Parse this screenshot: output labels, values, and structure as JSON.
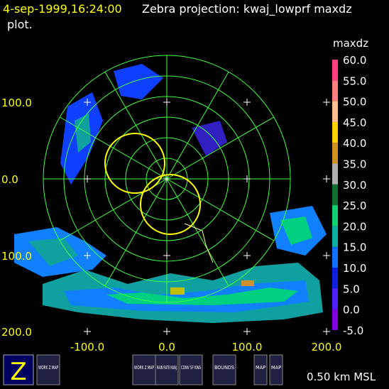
{
  "header": {
    "time": "4-sep-1999,16:24:00",
    "title": "Zebra projection: kwaj_lowprf maxdz",
    "title_cont": "plot."
  },
  "y_axis_labels": [
    "100.0",
    "0.0",
    "100.0",
    "200.0"
  ],
  "x_axis_labels": [
    "-100.0",
    "0.0",
    "100.0",
    "200.0"
  ],
  "colorbar": {
    "title": "maxdz",
    "labels": [
      "60.0",
      "55.0",
      "50.0",
      "45.0",
      "40.0",
      "35.0",
      "30.0",
      "25.0",
      "20.0",
      "15.0",
      "10.0",
      "5.0",
      "0.0",
      "-5.0"
    ]
  },
  "buttons": [
    "WORK Z MAP",
    "WORK Z MAP",
    "RAIN RATE KWAJ",
    "CONV SF KWA",
    "BOUNDS",
    "MAP",
    "MAP"
  ],
  "altitude": "0.50 km MSL"
}
